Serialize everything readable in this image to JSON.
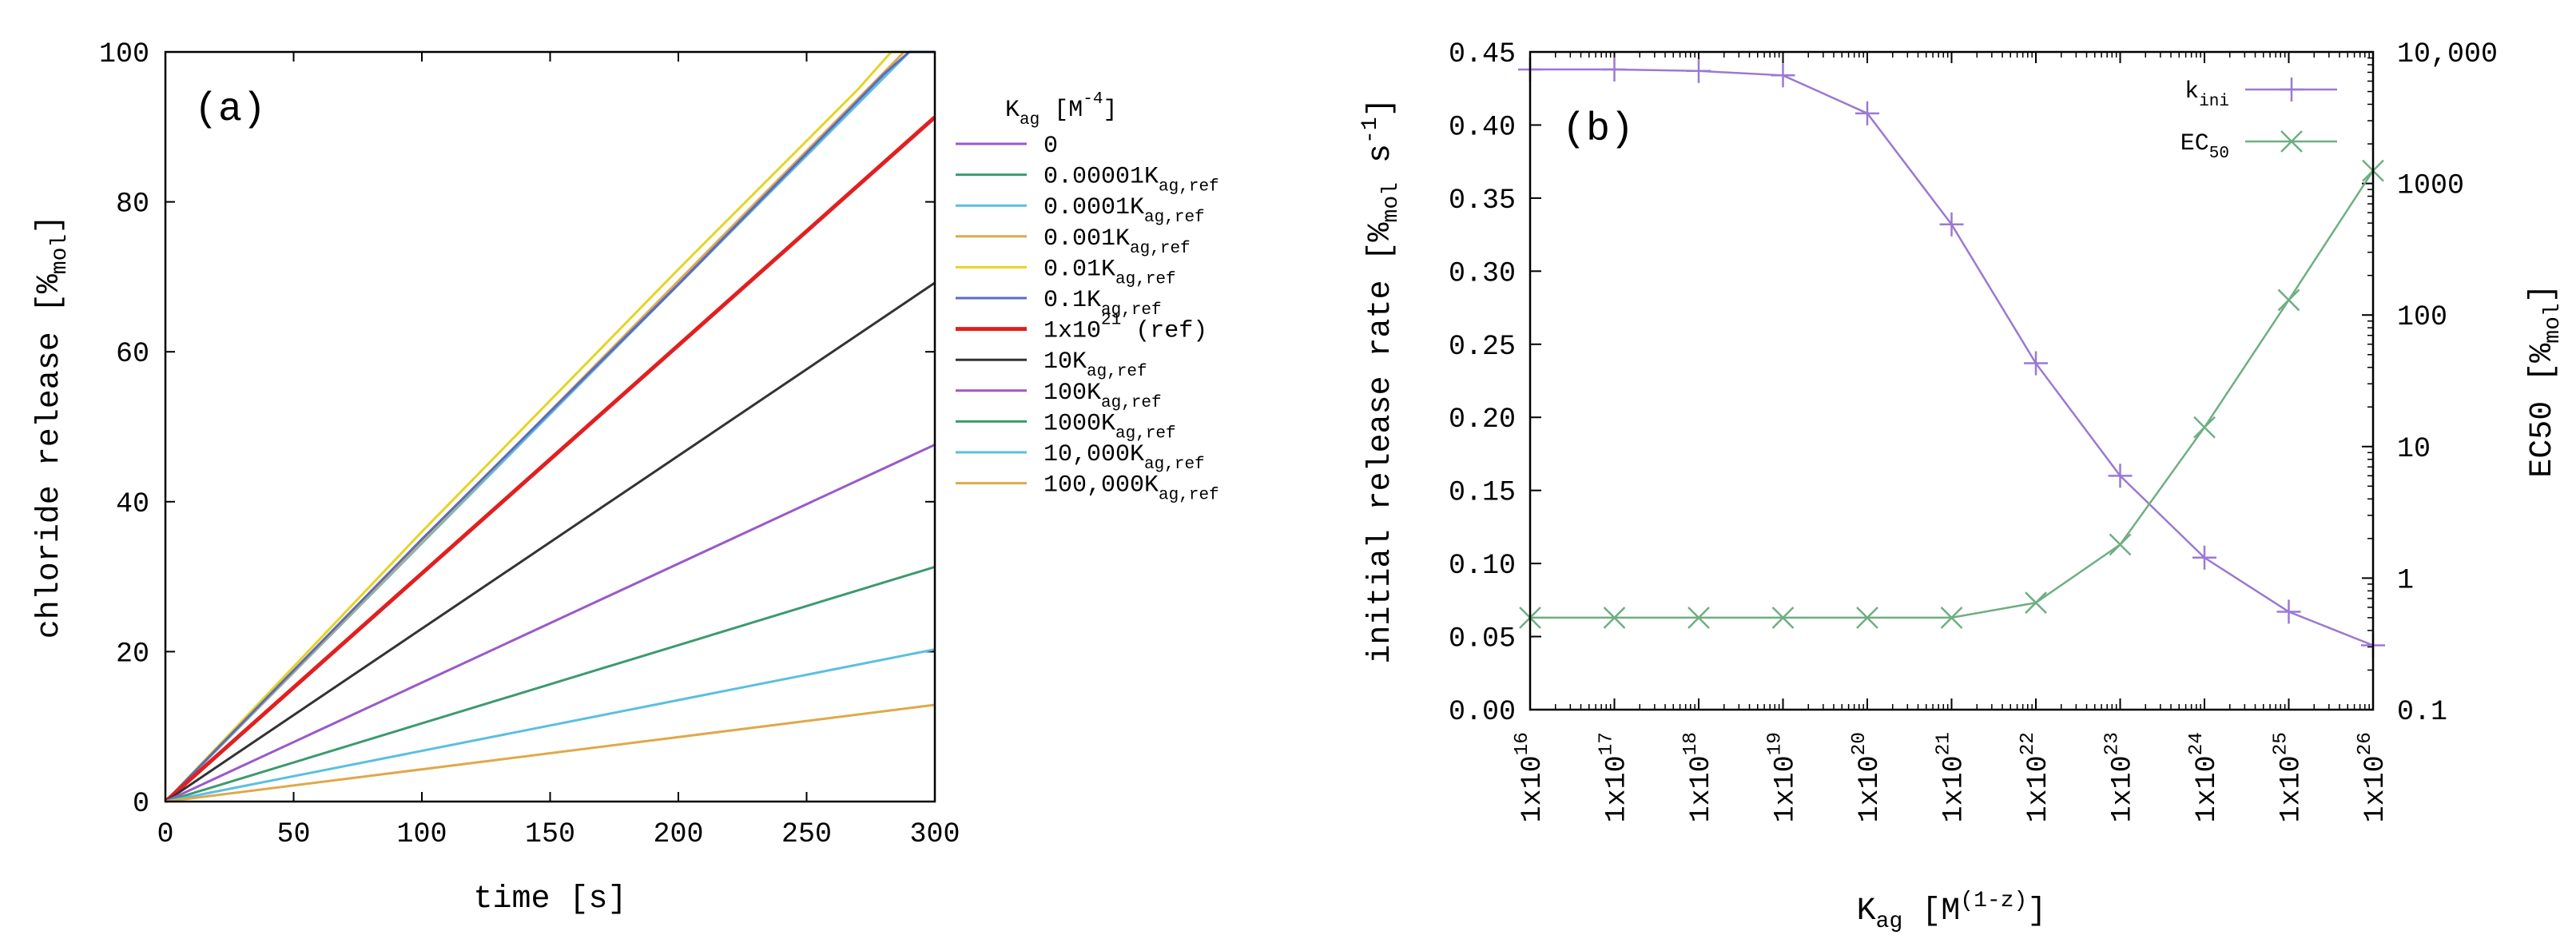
{
  "chart_data": [
    {
      "type": "line",
      "panel_label": "(a)",
      "xlabel": "time [s]",
      "ylabel": {
        "text": "chloride release [",
        "sub": "mol",
        "pre_sub": "%",
        "end": "]"
      },
      "xlim": [
        0,
        300
      ],
      "ylim": [
        0,
        100
      ],
      "xticks": [
        "0",
        "50",
        "100",
        "150",
        "200",
        "250",
        "300"
      ],
      "yticks": [
        "0",
        "20",
        "40",
        "60",
        "80",
        "100"
      ],
      "legend_title": {
        "base": "K",
        "sub": "ag",
        "mid": " [M",
        "sup": "-4",
        "end": "]"
      },
      "series": [
        {
          "name": "0",
          "label": {
            "lead": "0"
          },
          "color": "#9b59c9",
          "x": [
            0,
            290,
            300
          ],
          "y": [
            0,
            100,
            100
          ]
        },
        {
          "name": "0.00001Kag,ref",
          "label": {
            "lead": "0.00001K",
            "sub": "ag,ref"
          },
          "color": "#3d9a6e",
          "x": [
            0,
            290,
            300
          ],
          "y": [
            0,
            100,
            100
          ]
        },
        {
          "name": "0.0001Kag,ref",
          "label": {
            "lead": "0.0001K",
            "sub": "ag,ref"
          },
          "color": "#5bbfe0",
          "x": [
            0,
            290,
            300
          ],
          "y": [
            0,
            100,
            100
          ]
        },
        {
          "name": "0.001Kag,ref",
          "label": {
            "lead": "0.001K",
            "sub": "ag,ref"
          },
          "color": "#e0a84a",
          "x": [
            0,
            288,
            300
          ],
          "y": [
            0,
            100,
            100
          ]
        },
        {
          "name": "0.01Kag,ref",
          "label": {
            "lead": "0.01K",
            "sub": "ag,ref"
          },
          "color": "#e6d422",
          "x": [
            0,
            100,
            200,
            270,
            283,
            300
          ],
          "y": [
            0,
            36,
            71,
            95,
            100,
            100
          ]
        },
        {
          "name": "0.1Kag,ref",
          "label": {
            "lead": "0.1K",
            "sub": "ag,ref"
          },
          "color": "#5b6bc0",
          "x": [
            0,
            100,
            200,
            280,
            290,
            300
          ],
          "y": [
            0,
            35,
            69,
            97,
            100,
            100
          ]
        },
        {
          "name": "1x10^21 (ref)",
          "label": {
            "lead": "1x10",
            "sup": "21",
            "tail": " (ref)"
          },
          "color": "#e02020",
          "x": [
            0,
            300
          ],
          "y": [
            0,
            91.3
          ]
        },
        {
          "name": "10Kag,ref",
          "label": {
            "lead": "10K",
            "sub": "ag,ref"
          },
          "color": "#333333",
          "x": [
            0,
            300
          ],
          "y": [
            0,
            69.2
          ]
        },
        {
          "name": "100Kag,ref",
          "label": {
            "lead": "100K",
            "sub": "ag,ref"
          },
          "color": "#9b59c9",
          "x": [
            0,
            300
          ],
          "y": [
            0,
            47.6
          ]
        },
        {
          "name": "1000Kag,ref",
          "label": {
            "lead": "1000K",
            "sub": "ag,ref"
          },
          "color": "#3d9a6e",
          "x": [
            0,
            300
          ],
          "y": [
            0,
            31.3
          ]
        },
        {
          "name": "10,000Kag,ref",
          "label": {
            "lead": "10,000K",
            "sub": "ag,ref"
          },
          "color": "#5bbfe0",
          "x": [
            0,
            300
          ],
          "y": [
            0,
            20.3
          ]
        },
        {
          "name": "100,000Kag,ref",
          "label": {
            "lead": "100,000K",
            "sub": "ag,ref"
          },
          "color": "#e0a84a",
          "x": [
            0,
            300
          ],
          "y": [
            0,
            12.9
          ]
        }
      ]
    },
    {
      "type": "line",
      "panel_label": "(b)",
      "xlabel": {
        "base": "K",
        "sub": "ag",
        "mid": " [M",
        "sup": "(1-z)",
        "end": "]"
      },
      "ylabel_left": {
        "pre": "initial release rate [%",
        "sub": "mol",
        "mid": " s",
        "sup": "-1",
        "end": "]"
      },
      "ylabel_right": {
        "pre": "EC50 [%",
        "sub": "mol",
        "end": "]"
      },
      "xticks": [
        "16",
        "17",
        "18",
        "19",
        "20",
        "21",
        "22",
        "23",
        "24",
        "25",
        "26"
      ],
      "xtick_prefix": "1x10",
      "x_exponents": [
        16,
        17,
        18,
        19,
        20,
        21,
        22,
        23,
        24,
        25,
        26
      ],
      "ylim_left": [
        0,
        0.45
      ],
      "yticks_left": [
        "0.00",
        "0.05",
        "0.10",
        "0.15",
        "0.20",
        "0.25",
        "0.30",
        "0.35",
        "0.40",
        "0.45"
      ],
      "ylim_right_log": [
        0.1,
        10000
      ],
      "yticks_right": [
        "0.1",
        "1",
        "10",
        "100",
        "1000",
        "10,000"
      ],
      "legend": [
        {
          "base": "k",
          "sub": "ini"
        },
        {
          "base": "EC",
          "sub": "50"
        }
      ],
      "series": [
        {
          "name": "kini",
          "color": "#9b79d2",
          "marker": "+",
          "axis": "left",
          "values": [
            0.438,
            0.438,
            0.437,
            0.434,
            0.408,
            0.332,
            0.237,
            0.16,
            0.104,
            0.067,
            0.044
          ]
        },
        {
          "name": "EC50",
          "color": "#6fae82",
          "marker": "x",
          "axis": "right",
          "values": [
            0.5,
            0.5,
            0.5,
            0.5,
            0.5,
            0.5,
            0.65,
            1.8,
            14,
            130,
            1250
          ]
        }
      ]
    }
  ]
}
